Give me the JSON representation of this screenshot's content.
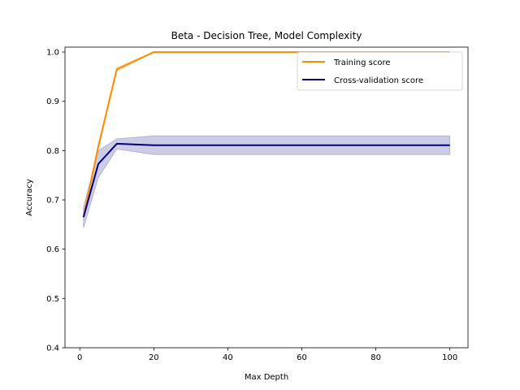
{
  "chart_data": {
    "type": "line",
    "title": "Beta - Decision Tree, Model Complexity",
    "xlabel": "Max Depth",
    "ylabel": "Accuracy",
    "xlim": [
      -4,
      104.9
    ],
    "ylim": [
      0.4,
      1.01
    ],
    "xticks": [
      0,
      20,
      40,
      60,
      80,
      100
    ],
    "yticks": [
      0.4,
      0.5,
      0.6,
      0.7,
      0.8,
      0.9,
      1.0
    ],
    "xtick_labels": [
      "0",
      "20",
      "40",
      "60",
      "80",
      "100"
    ],
    "ytick_labels": [
      "0.4",
      "0.5",
      "0.6",
      "0.7",
      "0.8",
      "0.9",
      "1.0"
    ],
    "grid": false,
    "legend_position": "top-right",
    "x": [
      1,
      5,
      10,
      20,
      100
    ],
    "series": [
      {
        "name": "Training score",
        "color": "#ff8c00",
        "values": [
          0.666,
          0.808,
          0.965,
          1.0,
          1.0
        ],
        "band_lower": [
          0.662,
          0.804,
          0.961,
          1.0,
          1.0
        ],
        "band_upper": [
          0.672,
          0.814,
          0.969,
          1.0,
          1.0
        ]
      },
      {
        "name": "Cross-validation score",
        "color": "#000080",
        "values": [
          0.665,
          0.773,
          0.814,
          0.811,
          0.811
        ],
        "band_lower": [
          0.643,
          0.745,
          0.803,
          0.792,
          0.792
        ],
        "band_upper": [
          0.686,
          0.8,
          0.824,
          0.83,
          0.83
        ]
      }
    ]
  }
}
